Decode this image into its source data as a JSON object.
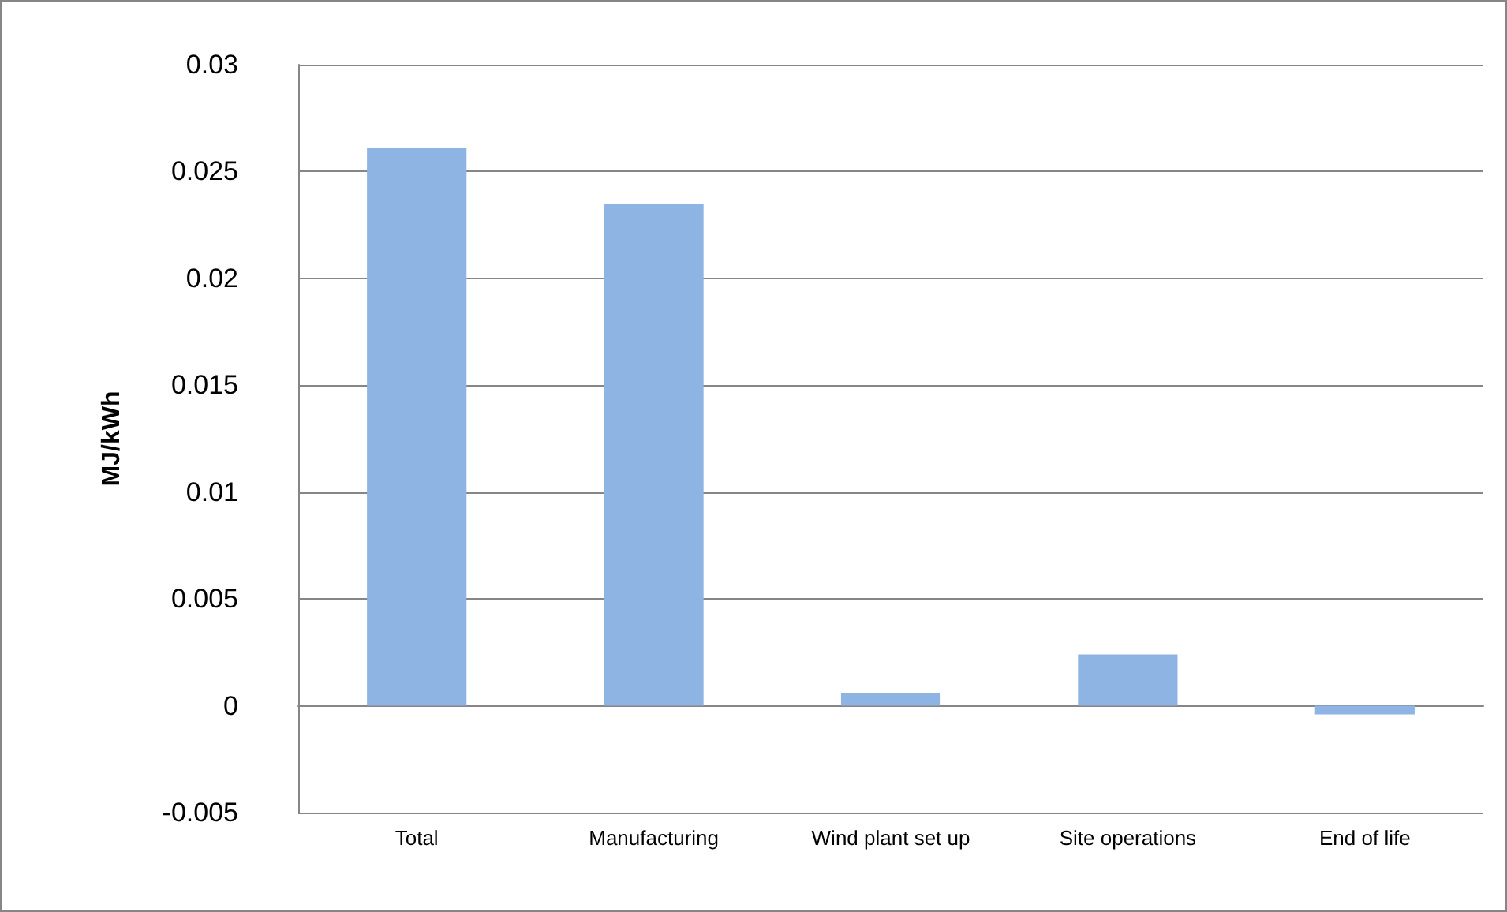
{
  "chart_data": {
    "type": "bar",
    "ylabel": "MJ/kWh",
    "categories": [
      "Total",
      "Manufacturing",
      "Wind plant set up",
      "Site operations",
      "End of life"
    ],
    "values": [
      0.0261,
      0.0235,
      0.0006,
      0.0024,
      -0.0004
    ],
    "color": "#8eb4e3",
    "ylim": [
      -0.005,
      0.03
    ],
    "yticks": [
      -0.005,
      0,
      0.005,
      0.01,
      0.015,
      0.02,
      0.025,
      0.03
    ],
    "grid": "y"
  }
}
